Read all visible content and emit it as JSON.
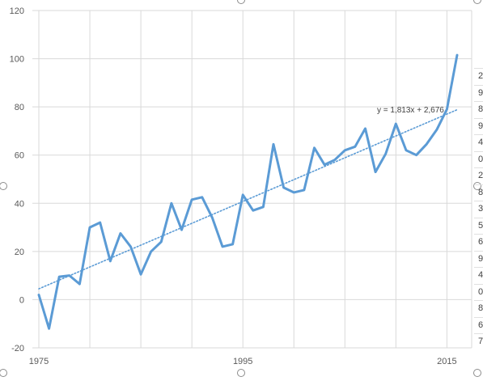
{
  "chart_data": {
    "type": "line",
    "title": "",
    "xlabel": "",
    "ylabel": "",
    "xlim": [
      1975,
      2016
    ],
    "ylim": [
      -20,
      120
    ],
    "x_ticks": [
      "1975",
      "1995",
      "2015"
    ],
    "y_ticks": [
      "120",
      "100",
      "80",
      "60",
      "40",
      "20",
      "0",
      "-20"
    ],
    "grid": true,
    "series": [
      {
        "color": "#5b9bd5",
        "points": [
          [
            1975,
            2
          ],
          [
            1976,
            -12
          ],
          [
            1977,
            9.5
          ],
          [
            1978,
            10
          ],
          [
            1979,
            6.5
          ],
          [
            1980,
            30
          ],
          [
            1981,
            32
          ],
          [
            1982,
            16
          ],
          [
            1983,
            27.5
          ],
          [
            1984,
            22
          ],
          [
            1985,
            10.5
          ],
          [
            1986,
            20
          ],
          [
            1987,
            24
          ],
          [
            1988,
            40
          ],
          [
            1989,
            29
          ],
          [
            1990,
            41.5
          ],
          [
            1991,
            42.5
          ],
          [
            1992,
            34
          ],
          [
            1993,
            22
          ],
          [
            1994,
            23
          ],
          [
            1995,
            43.5
          ],
          [
            1996,
            37
          ],
          [
            1997,
            38.5
          ],
          [
            1998,
            64.5
          ],
          [
            1999,
            46.5
          ],
          [
            2000,
            44.5
          ],
          [
            2001,
            45.5
          ],
          [
            2002,
            63
          ],
          [
            2003,
            56
          ],
          [
            2004,
            58
          ],
          [
            2005,
            62
          ],
          [
            2006,
            63.5
          ],
          [
            2007,
            71
          ],
          [
            2008,
            53
          ],
          [
            2009,
            60.5
          ],
          [
            2010,
            73
          ],
          [
            2011,
            62
          ],
          [
            2012,
            60
          ],
          [
            2013,
            64.5
          ],
          [
            2014,
            70.5
          ],
          [
            2015,
            79
          ],
          [
            2016,
            101.5
          ]
        ]
      }
    ],
    "trendline": {
      "color": "#5b9bd5",
      "style": "dotted",
      "equation": "y = 1,813x + 2,676",
      "slope": 1.813,
      "intercept": 2.676,
      "x_start": 1975,
      "x_end": 2016
    }
  },
  "right_strip_digits": [
    "2",
    "9",
    "8",
    "9",
    "4",
    "0",
    "2",
    "8",
    "3",
    "5",
    "6",
    "9",
    "4",
    "0",
    "8",
    "6",
    "7"
  ]
}
